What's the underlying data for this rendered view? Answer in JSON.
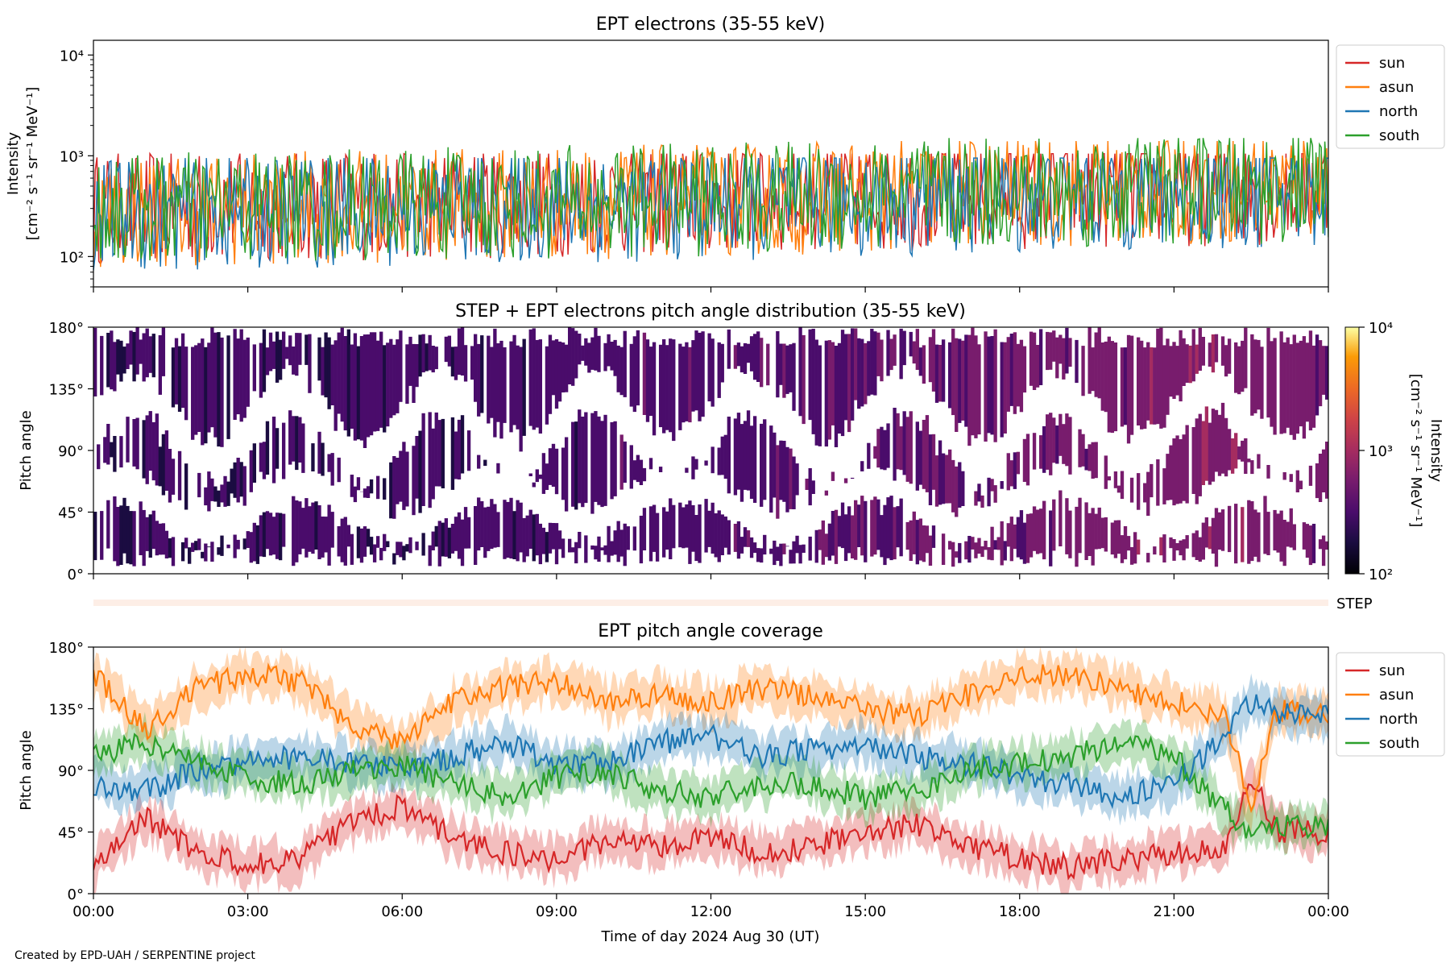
{
  "footer_credit": "Created by EPD-UAH / SERPENTINE project",
  "colors": {
    "sun": "#d62728",
    "asun": "#ff7f0e",
    "north": "#1f77b4",
    "south": "#2ca02c"
  },
  "chart_data": [
    {
      "type": "line",
      "title": "EPT electrons (35-55 keV)",
      "ylabel_line1": "Intensity",
      "ylabel_line2": "[cm⁻² s⁻¹ sr⁻¹ MeV⁻¹]",
      "yscale": "log",
      "ylim": [
        50,
        14000
      ],
      "yticks": [
        {
          "value": 100,
          "label": "10²"
        },
        {
          "value": 1000,
          "label": "10³"
        },
        {
          "value": 10000,
          "label": "10⁴"
        }
      ],
      "x_range_hours": [
        0,
        24
      ],
      "legend_position": "outside-right",
      "series": [
        {
          "name": "sun",
          "key": "sun",
          "level_start": 300,
          "level_mid": 380,
          "level_end": 480,
          "typical_min": 60,
          "typical_max": 1050
        },
        {
          "name": "asun",
          "key": "asun",
          "level_start": 280,
          "level_mid": 360,
          "level_end": 520,
          "typical_min": 55,
          "typical_max": 1400
        },
        {
          "name": "north",
          "key": "north",
          "level_start": 260,
          "level_mid": 330,
          "level_end": 450,
          "typical_min": 50,
          "typical_max": 950
        },
        {
          "name": "south",
          "key": "south",
          "level_start": 290,
          "level_mid": 370,
          "level_end": 500,
          "typical_min": 50,
          "typical_max": 1500
        }
      ]
    },
    {
      "type": "heatmap",
      "title": "STEP + EPT electrons pitch angle distribution (35-55 keV)",
      "ylabel": "Pitch angle",
      "ylim": [
        0,
        180
      ],
      "yticks": [
        "0°",
        "45°",
        "90°",
        "135°",
        "180°"
      ],
      "ytick_values": [
        0,
        45,
        90,
        135,
        180
      ],
      "colorbar": {
        "scale": "log",
        "range": [
          100,
          10000
        ],
        "ticks": [
          {
            "value": 100,
            "label": "10²"
          },
          {
            "value": 1000,
            "label": "10³"
          },
          {
            "value": 10000,
            "label": "10⁴"
          }
        ],
        "label_line1": "Intensity",
        "label_line2": "[cm⁻² s⁻¹ sr⁻¹ MeV⁻¹]",
        "colormap": "inferno"
      },
      "typical_intensity_by_hour": [
        [
          0,
          250
        ],
        [
          6,
          280
        ],
        [
          12,
          340
        ],
        [
          15,
          420
        ],
        [
          18,
          520
        ],
        [
          22,
          600
        ],
        [
          24,
          500
        ]
      ]
    },
    {
      "type": "strip",
      "label": "STEP"
    },
    {
      "type": "line",
      "title": "EPT pitch angle coverage",
      "ylabel": "Pitch angle",
      "ylim": [
        0,
        180
      ],
      "yticks": [
        "0°",
        "45°",
        "90°",
        "135°",
        "180°"
      ],
      "ytick_values": [
        0,
        45,
        90,
        135,
        180
      ],
      "xlabel": "Time of day 2024 Aug 30 (UT)",
      "xticks": [
        "00:00",
        "03:00",
        "06:00",
        "09:00",
        "12:00",
        "15:00",
        "18:00",
        "21:00",
        "00:00"
      ],
      "xtick_hours": [
        0,
        3,
        6,
        9,
        12,
        15,
        18,
        21,
        24
      ],
      "legend_position": "outside-right",
      "series": [
        {
          "name": "sun",
          "key": "sun",
          "points": [
            [
              0,
              20
            ],
            [
              1,
              55
            ],
            [
              2,
              30
            ],
            [
              3,
              20
            ],
            [
              4,
              25
            ],
            [
              5,
              50
            ],
            [
              6,
              65
            ],
            [
              7,
              40
            ],
            [
              8,
              30
            ],
            [
              9,
              25
            ],
            [
              10,
              40
            ],
            [
              11,
              35
            ],
            [
              12,
              40
            ],
            [
              13,
              30
            ],
            [
              14,
              35
            ],
            [
              15,
              45
            ],
            [
              16,
              50
            ],
            [
              17,
              35
            ],
            [
              18,
              25
            ],
            [
              19,
              20
            ],
            [
              20,
              25
            ],
            [
              21,
              30
            ],
            [
              22,
              35
            ],
            [
              22.5,
              85
            ],
            [
              23,
              45
            ],
            [
              24,
              45
            ]
          ]
        },
        {
          "name": "asun",
          "key": "asun",
          "points": [
            [
              0,
              160
            ],
            [
              1,
              120
            ],
            [
              2,
              150
            ],
            [
              3,
              160
            ],
            [
              4,
              155
            ],
            [
              5,
              125
            ],
            [
              6,
              110
            ],
            [
              7,
              140
            ],
            [
              8,
              150
            ],
            [
              9,
              155
            ],
            [
              10,
              140
            ],
            [
              11,
              145
            ],
            [
              12,
              140
            ],
            [
              13,
              150
            ],
            [
              14,
              145
            ],
            [
              15,
              135
            ],
            [
              16,
              130
            ],
            [
              17,
              145
            ],
            [
              18,
              160
            ],
            [
              19,
              160
            ],
            [
              20,
              150
            ],
            [
              21,
              140
            ],
            [
              22,
              130
            ],
            [
              22.5,
              60
            ],
            [
              23,
              135
            ],
            [
              24,
              130
            ]
          ]
        },
        {
          "name": "north",
          "key": "north",
          "points": [
            [
              0,
              80
            ],
            [
              1,
              75
            ],
            [
              2,
              90
            ],
            [
              3,
              95
            ],
            [
              4,
              100
            ],
            [
              5,
              95
            ],
            [
              6,
              90
            ],
            [
              7,
              100
            ],
            [
              8,
              110
            ],
            [
              9,
              95
            ],
            [
              10,
              95
            ],
            [
              11,
              110
            ],
            [
              12,
              115
            ],
            [
              13,
              100
            ],
            [
              14,
              105
            ],
            [
              15,
              110
            ],
            [
              16,
              100
            ],
            [
              17,
              95
            ],
            [
              18,
              85
            ],
            [
              19,
              80
            ],
            [
              20,
              70
            ],
            [
              21,
              80
            ],
            [
              22,
              115
            ],
            [
              22.5,
              140
            ],
            [
              23,
              130
            ],
            [
              24,
              130
            ]
          ]
        },
        {
          "name": "south",
          "key": "south",
          "points": [
            [
              0,
              100
            ],
            [
              1,
              110
            ],
            [
              2,
              95
            ],
            [
              3,
              85
            ],
            [
              4,
              80
            ],
            [
              5,
              90
            ],
            [
              6,
              95
            ],
            [
              7,
              80
            ],
            [
              8,
              70
            ],
            [
              9,
              85
            ],
            [
              10,
              90
            ],
            [
              11,
              75
            ],
            [
              12,
              70
            ],
            [
              13,
              80
            ],
            [
              14,
              80
            ],
            [
              15,
              70
            ],
            [
              16,
              75
            ],
            [
              17,
              90
            ],
            [
              18,
              95
            ],
            [
              19,
              100
            ],
            [
              20,
              110
            ],
            [
              21,
              100
            ],
            [
              22,
              60
            ],
            [
              22.5,
              45
            ],
            [
              23,
              50
            ],
            [
              24,
              50
            ]
          ]
        }
      ]
    }
  ]
}
